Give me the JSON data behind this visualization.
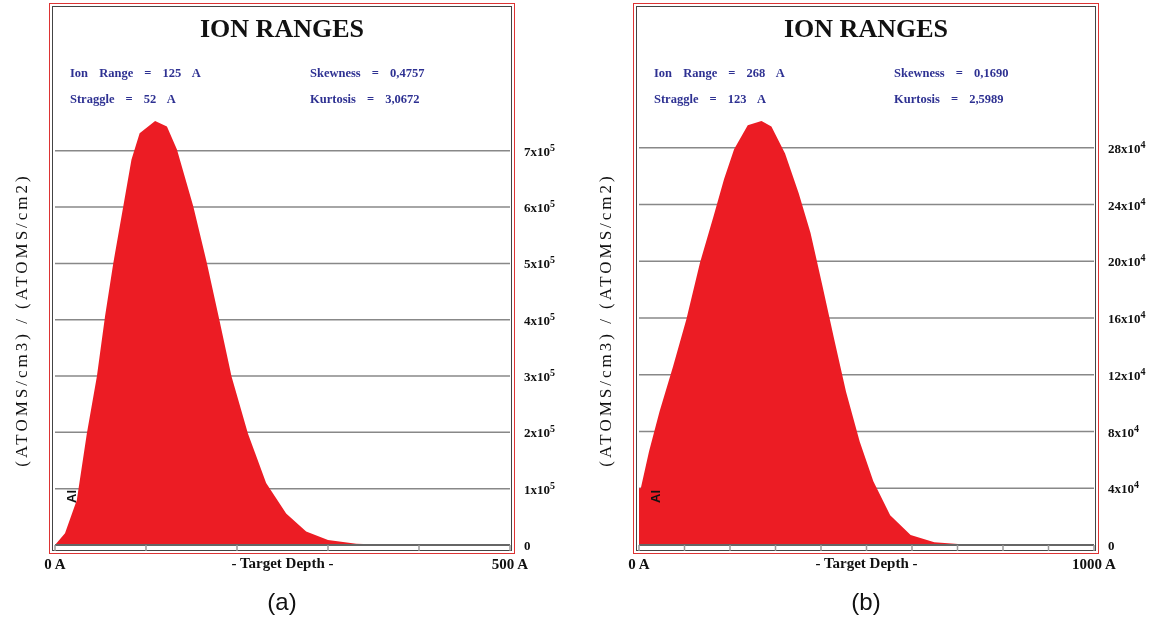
{
  "chart_data": [
    {
      "type": "area",
      "title": "ION RANGES",
      "xlabel": "- Target Depth -",
      "ylabel": "(ATOMS/cm3) / (ATOMS/cm2)",
      "annotations": [
        "Ion Range = 125 A",
        "Straggle = 52 A",
        "Skewness = 0,4757",
        "Kurtosis = 3,0672",
        "Al",
        "(a)"
      ],
      "series": [
        {
          "color": "#ec1c24",
          "x": [
            0,
            11,
            24,
            35,
            46,
            55,
            64,
            75,
            84,
            93,
            110,
            123,
            134,
            152,
            167,
            181,
            194,
            212,
            232,
            254,
            276,
            300,
            331,
            370
          ],
          "values": [
            0,
            21000,
            80000,
            198000,
            299000,
            406000,
            500000,
            601000,
            684000,
            731000,
            753000,
            743000,
            702000,
            601000,
            500000,
            397000,
            299000,
            198000,
            110000,
            56000,
            24000,
            9000,
            2000,
            0
          ]
        }
      ],
      "xlim": [
        0,
        500
      ],
      "xticks": [
        {
          "value": 0,
          "label": "0 A"
        },
        {
          "value": 100,
          "label": null
        },
        {
          "value": 200,
          "label": null
        },
        {
          "value": 300,
          "label": null
        },
        {
          "value": 400,
          "label": null
        },
        {
          "value": 500,
          "label": "500 A"
        }
      ],
      "ylim": [
        0,
        957000
      ],
      "yticks": [
        {
          "value": 0,
          "label": "0"
        },
        {
          "value": 100000,
          "label": "1x10$^{5}$"
        },
        {
          "value": 200000,
          "label": "2x10$^{5}$"
        },
        {
          "value": 300000,
          "label": "3x10$^{5}$"
        },
        {
          "value": 400000,
          "label": "4x10$^{5}$"
        },
        {
          "value": 500000,
          "label": "5x10$^{5}$"
        },
        {
          "value": 600000,
          "label": "6x10$^{5}$"
        },
        {
          "value": 700000,
          "label": "7x10$^{5}$"
        }
      ],
      "grid": "y",
      "legend": false
    },
    {
      "type": "area",
      "title": "ION RANGES",
      "xlabel": "- Target Depth -",
      "ylabel": "(ATOMS/cm3) / (ATOMS/cm2)",
      "annotations": [
        "Ion Range = 268 A",
        "Straggle = 123 A",
        "Skewness = 0,1690",
        "Kurtosis = 2,5989",
        "Al",
        "(b)"
      ],
      "series": [
        {
          "color": "#ec1c24",
          "x": [
            0,
            4,
            22,
            45,
            75,
            104,
            134,
            164,
            187,
            209,
            239,
            269,
            291,
            321,
            351,
            377,
            403,
            429,
            455,
            485,
            515,
            552,
            597,
            649,
            731
          ],
          "values": [
            40000,
            40000,
            66000,
            94000,
            126000,
            159000,
            199000,
            232000,
            258000,
            279000,
            296000,
            299000,
            295000,
            276000,
            248000,
            220000,
            183000,
            145000,
            108000,
            73000,
            45000,
            21000,
            7000,
            2000,
            0
          ]
        }
      ],
      "xlim": [
        0,
        1000
      ],
      "xticks": [
        {
          "value": 0,
          "label": "0 A"
        },
        {
          "value": 100,
          "label": null
        },
        {
          "value": 200,
          "label": null
        },
        {
          "value": 300,
          "label": null
        },
        {
          "value": 400,
          "label": null
        },
        {
          "value": 500,
          "label": null
        },
        {
          "value": 600,
          "label": null
        },
        {
          "value": 700,
          "label": null
        },
        {
          "value": 800,
          "label": null
        },
        {
          "value": 900,
          "label": null
        },
        {
          "value": 1000,
          "label": "1000 A"
        }
      ],
      "ylim": [
        0,
        380000
      ],
      "yticks": [
        {
          "value": 0,
          "label": "0"
        },
        {
          "value": 40000,
          "label": "4x10$^{4}$"
        },
        {
          "value": 80000,
          "label": "8x10$^{4}$"
        },
        {
          "value": 120000,
          "label": "12x10$^{4}$"
        },
        {
          "value": 160000,
          "label": "16x10$^{4}$"
        },
        {
          "value": 200000,
          "label": "20x10$^{4}$"
        },
        {
          "value": 240000,
          "label": "24x10$^{4}$"
        },
        {
          "value": 280000,
          "label": "28x10$^{4}$"
        }
      ],
      "grid": "y",
      "legend": false
    }
  ]
}
